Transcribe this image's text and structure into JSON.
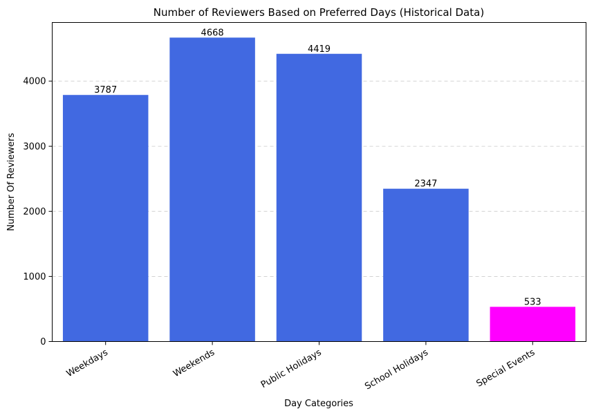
{
  "chart_data": {
    "type": "bar",
    "title": "Number of Reviewers Based on Preferred Days (Historical Data)",
    "xlabel": "Day Categories",
    "ylabel": "Number Of Reviewers",
    "categories": [
      "Weekdays",
      "Weekends",
      "Public Holidays",
      "School Holidays",
      "Special Events"
    ],
    "values": [
      3787,
      4668,
      4419,
      2347,
      533
    ],
    "bar_colors": [
      "#4169e1",
      "#4169e1",
      "#4169e1",
      "#4169e1",
      "#ff00ff"
    ],
    "ylim": [
      0,
      4900
    ],
    "yticks": [
      0,
      1000,
      2000,
      3000,
      4000
    ],
    "grid": {
      "axis": "y",
      "style": "dashed",
      "color": "#cccccc"
    },
    "xtick_rotation_deg": 30
  }
}
